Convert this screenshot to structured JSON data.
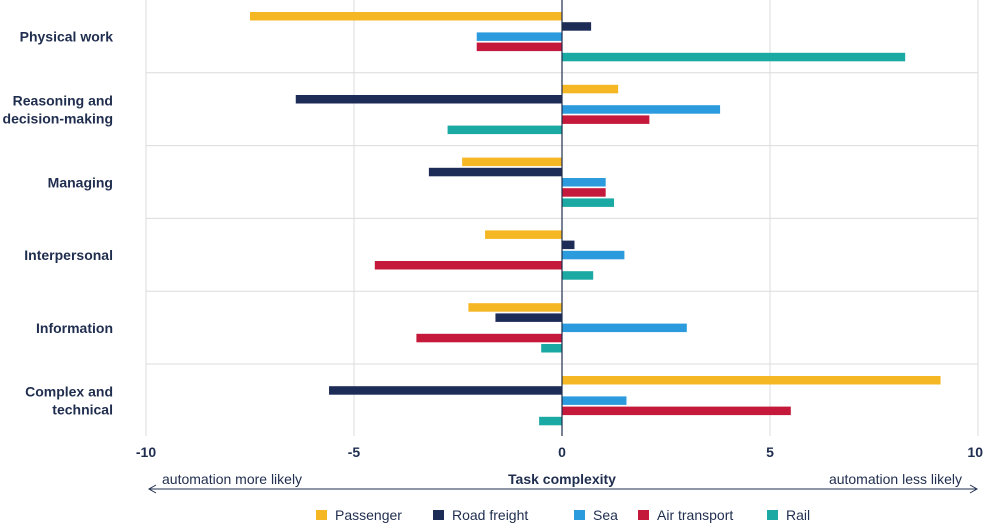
{
  "chart_data": {
    "type": "bar",
    "orientation": "horizontal",
    "categories": [
      "Physical work",
      "Reasoning and decision-making",
      "Managing",
      "Interpersonal",
      "Information",
      "Complex and technical"
    ],
    "category_lines": [
      [
        "Physical work"
      ],
      [
        "Reasoning and",
        "decision-making"
      ],
      [
        "Managing"
      ],
      [
        "Interpersonal"
      ],
      [
        "Information"
      ],
      [
        "Complex and",
        "technical"
      ]
    ],
    "series": [
      {
        "name": "Passenger",
        "color": "#f5b724",
        "values": [
          -7.5,
          1.35,
          -2.4,
          -1.85,
          -2.25,
          9.1
        ]
      },
      {
        "name": "Road freight",
        "color": "#1d2b57",
        "values": [
          0.7,
          -6.4,
          -3.2,
          0.3,
          -1.6,
          -5.6
        ]
      },
      {
        "name": "Sea",
        "color": "#2b9bde",
        "values": [
          -2.05,
          3.8,
          1.05,
          1.5,
          3.0,
          1.55
        ]
      },
      {
        "name": "Air transport",
        "color": "#c4193a",
        "values": [
          -2.05,
          2.1,
          1.05,
          -4.5,
          -3.5,
          5.5
        ]
      },
      {
        "name": "Rail",
        "color": "#1aa9a3",
        "values": [
          8.25,
          -2.75,
          1.25,
          0.75,
          -0.5,
          -0.55
        ]
      }
    ],
    "xlim": [
      -10,
      10
    ],
    "xticks": [
      -10,
      -5,
      0,
      5,
      10
    ],
    "xtick_labels": [
      "-10",
      "-5",
      "0",
      "5",
      "10"
    ],
    "xlabel": "Task complexity",
    "left_note": "automation more likely",
    "right_note": "automation less likely",
    "legend_position": "bottom",
    "grid": "vertical"
  }
}
